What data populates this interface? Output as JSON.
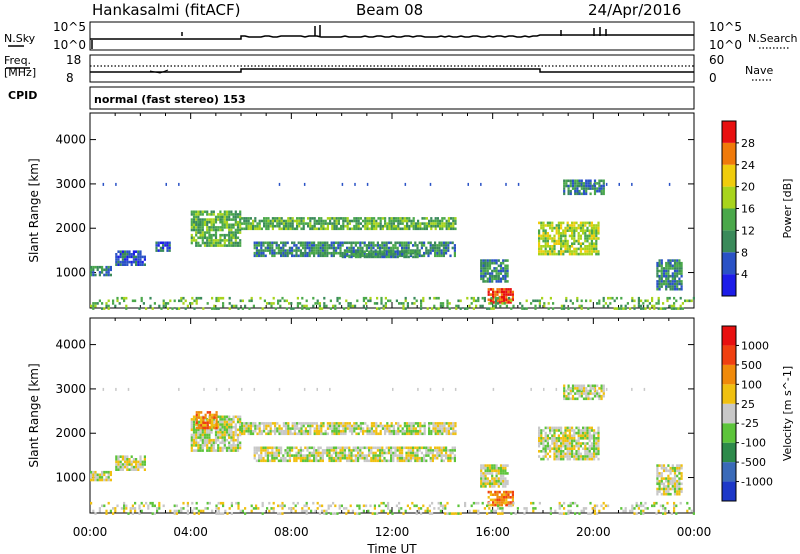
{
  "header": {
    "station": "Hankasalmi (fitACF)",
    "beam": "Beam 08",
    "date": "24/Apr/2016"
  },
  "top_panels": {
    "nsky": {
      "label": "N.Sky",
      "ytick_top": "10^5",
      "ytick_bottom": "10^0"
    },
    "nsearch": {
      "label": "N.Search",
      "ytick_top": "10^5",
      "ytick_bottom": "10^0"
    },
    "freq": {
      "label_line1": "Freq.",
      "label_line2": "[MHz]",
      "ytick_top": "18",
      "ytick_bottom": "8"
    },
    "nave": {
      "label": "Nave",
      "ytick_top": "60",
      "ytick_bottom": "0"
    },
    "cpid": {
      "label": "CPID",
      "text": "normal (fast stereo) 153"
    }
  },
  "chart_data": [
    {
      "type": "heatmap",
      "name": "Power",
      "ylabel": "Slant Range [km]",
      "yticks": [
        "1000",
        "2000",
        "3000",
        "4000"
      ],
      "ylim": [
        200,
        4600
      ],
      "xlim_hours": [
        0,
        24
      ],
      "colorbar_label": "Power [dB]",
      "colorbar_ticks": [
        "4",
        "8",
        "12",
        "16",
        "20",
        "24",
        "28"
      ],
      "colorbar_colors": [
        "#1d1de8",
        "#2a52c6",
        "#3a8a5a",
        "#4aa84a",
        "#a8d41c",
        "#f0cc0c",
        "#f07a0a",
        "#e81010"
      ],
      "regions": [
        {
          "t0": 0.0,
          "t1": 0.8,
          "r0": 950,
          "r1": 1150,
          "level": 2
        },
        {
          "t0": 1.0,
          "t1": 2.2,
          "r0": 1200,
          "r1": 1500,
          "level": 1
        },
        {
          "t0": 2.6,
          "t1": 3.2,
          "r0": 1500,
          "r1": 1700,
          "level": 1
        },
        {
          "t0": 4.0,
          "t1": 6.0,
          "r0": 1600,
          "r1": 2400,
          "level": 3
        },
        {
          "t0": 6.0,
          "t1": 14.5,
          "r0": 2000,
          "r1": 2250,
          "level": 3
        },
        {
          "t0": 6.5,
          "t1": 14.5,
          "r0": 1350,
          "r1": 1700,
          "level": 2
        },
        {
          "t0": 10.0,
          "t1": 13.0,
          "r0": 1350,
          "r1": 1500,
          "level": 2
        },
        {
          "t0": 15.5,
          "t1": 16.6,
          "r0": 800,
          "r1": 1300,
          "level": 2
        },
        {
          "t0": 15.8,
          "t1": 16.8,
          "r0": 350,
          "r1": 650,
          "level": 7
        },
        {
          "t0": 17.8,
          "t1": 20.2,
          "r0": 1400,
          "r1": 2150,
          "level": 4
        },
        {
          "t0": 18.8,
          "t1": 20.4,
          "r0": 2800,
          "r1": 3100,
          "level": 2
        },
        {
          "t0": 22.5,
          "t1": 23.5,
          "r0": 600,
          "r1": 1300,
          "level": 2
        },
        {
          "t0": 0.0,
          "t1": 24.0,
          "r0": 200,
          "r1": 450,
          "level": 3
        }
      ]
    },
    {
      "type": "heatmap",
      "name": "Velocity",
      "ylabel": "Slant Range [km]",
      "yticks": [
        "1000",
        "2000",
        "3000",
        "4000"
      ],
      "ylim": [
        200,
        4600
      ],
      "xlim_hours": [
        0,
        24
      ],
      "colorbar_label": "Velocity [m s^-1]",
      "colorbar_ticks": [
        "1000",
        "500",
        "100",
        "25",
        "-25",
        "-100",
        "-500",
        "-1000"
      ],
      "colorbar_colors": [
        "#1d38c8",
        "#3a6ab8",
        "#2d8a4a",
        "#5cc43a",
        "#c8c8c8",
        "#f0c010",
        "#f08a0a",
        "#f04010",
        "#e81010"
      ],
      "regions": [
        {
          "t0": 0.0,
          "t1": 0.8,
          "r0": 950,
          "r1": 1150,
          "level": 4
        },
        {
          "t0": 1.0,
          "t1": 2.2,
          "r0": 1200,
          "r1": 1500,
          "level": 4
        },
        {
          "t0": 4.0,
          "t1": 6.0,
          "r0": 1600,
          "r1": 2400,
          "level": 4
        },
        {
          "t0": 4.2,
          "t1": 5.0,
          "r0": 2100,
          "r1": 2500,
          "level": 6
        },
        {
          "t0": 6.0,
          "t1": 14.5,
          "r0": 2000,
          "r1": 2250,
          "level": 4
        },
        {
          "t0": 6.5,
          "t1": 14.5,
          "r0": 1350,
          "r1": 1700,
          "level": 4
        },
        {
          "t0": 15.5,
          "t1": 16.6,
          "r0": 800,
          "r1": 1300,
          "level": 4
        },
        {
          "t0": 15.8,
          "t1": 16.8,
          "r0": 350,
          "r1": 700,
          "level": 6
        },
        {
          "t0": 17.8,
          "t1": 20.2,
          "r0": 1400,
          "r1": 2150,
          "level": 4
        },
        {
          "t0": 18.8,
          "t1": 20.4,
          "r0": 2800,
          "r1": 3100,
          "level": 4
        },
        {
          "t0": 22.5,
          "t1": 23.5,
          "r0": 600,
          "r1": 1300,
          "level": 4
        },
        {
          "t0": 0.0,
          "t1": 24.0,
          "r0": 200,
          "r1": 450,
          "level": 4
        }
      ]
    }
  ],
  "xaxis": {
    "ticks": [
      "00:00",
      "04:00",
      "08:00",
      "12:00",
      "16:00",
      "20:00",
      "00:00"
    ],
    "label": "Time UT"
  }
}
